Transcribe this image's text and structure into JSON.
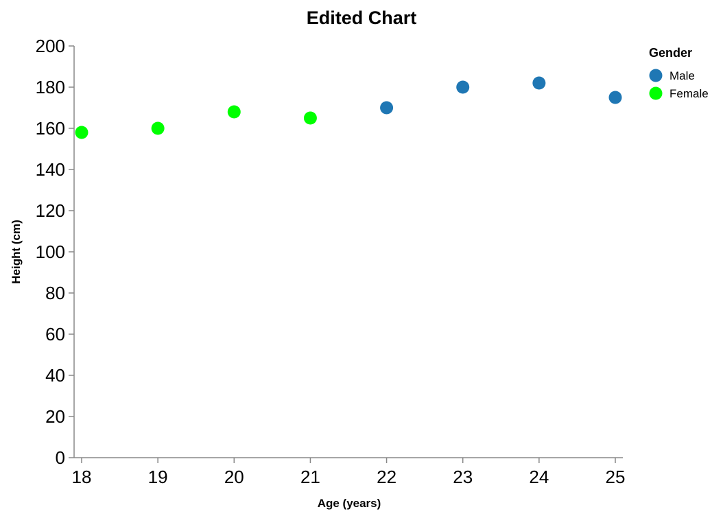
{
  "chart_data": {
    "type": "scatter",
    "title": "Edited Chart",
    "xlabel": "Age (years)",
    "ylabel": "Height (cm)",
    "xlim": [
      18,
      25
    ],
    "ylim": [
      0,
      200
    ],
    "x_ticks": [
      18,
      19,
      20,
      21,
      22,
      23,
      24,
      25
    ],
    "y_ticks": [
      0,
      20,
      40,
      60,
      80,
      100,
      120,
      140,
      160,
      180,
      200
    ],
    "grid": false,
    "legend": {
      "title": "Gender",
      "placement": "top-right",
      "entries": [
        {
          "label": "Male",
          "color": "#1f77b4"
        },
        {
          "label": "Female",
          "color": "#00ff00"
        }
      ]
    },
    "series": [
      {
        "name": "Male",
        "color": "#1f77b4",
        "points": [
          {
            "x": 22,
            "y": 170
          },
          {
            "x": 23,
            "y": 180
          },
          {
            "x": 24,
            "y": 182
          },
          {
            "x": 25,
            "y": 175
          }
        ]
      },
      {
        "name": "Female",
        "color": "#00ff00",
        "points": [
          {
            "x": 18,
            "y": 158
          },
          {
            "x": 19,
            "y": 160
          },
          {
            "x": 20,
            "y": 168
          },
          {
            "x": 21,
            "y": 165
          }
        ]
      }
    ]
  }
}
